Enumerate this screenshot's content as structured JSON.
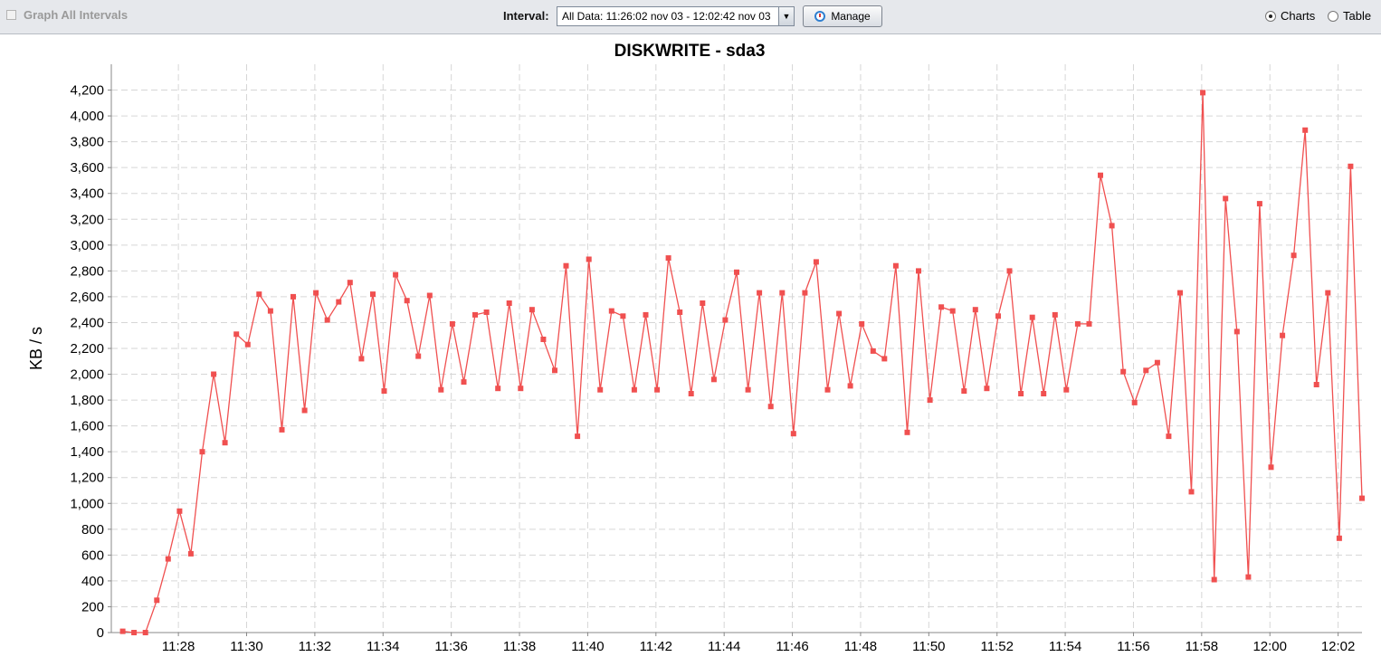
{
  "toolbar": {
    "graph_all_label": "Graph All Intervals",
    "interval_label": "Interval:",
    "interval_value": "All Data: 11:26:02 nov 03 - 12:02:42 nov 03",
    "manage_label": "Manage",
    "charts_label": "Charts",
    "table_label": "Table",
    "view_mode": "Charts"
  },
  "chart_data": {
    "type": "line",
    "title": "DISKWRITE - sda3",
    "ylabel": "KB / s",
    "xlabel": "",
    "ylim": [
      0,
      4400
    ],
    "y_ticks": [
      0,
      200,
      400,
      600,
      800,
      1000,
      1200,
      1400,
      1600,
      1800,
      2000,
      2200,
      2400,
      2600,
      2800,
      3000,
      3200,
      3400,
      3600,
      3800,
      4000,
      4200
    ],
    "x_ticks": [
      "11:28",
      "11:30",
      "11:32",
      "11:34",
      "11:36",
      "11:38",
      "11:40",
      "11:42",
      "11:44",
      "11:46",
      "11:48",
      "11:50",
      "11:52",
      "11:54",
      "11:56",
      "11:58",
      "12:00",
      "12:02"
    ],
    "xlim": [
      "11:26:02",
      "12:02:42"
    ],
    "grid": true,
    "line_color": "#f05050",
    "x": [
      "11:26:22",
      "11:26:42",
      "11:27:02",
      "11:27:22",
      "11:27:42",
      "11:28:02",
      "11:28:22",
      "11:28:42",
      "11:29:02",
      "11:29:22",
      "11:29:42",
      "11:30:02",
      "11:30:22",
      "11:30:42",
      "11:31:02",
      "11:31:22",
      "11:31:42",
      "11:32:02",
      "11:32:22",
      "11:32:42",
      "11:33:02",
      "11:33:22",
      "11:33:42",
      "11:34:02",
      "11:34:22",
      "11:34:42",
      "11:35:02",
      "11:35:22",
      "11:35:42",
      "11:36:02",
      "11:36:22",
      "11:36:42",
      "11:37:02",
      "11:37:22",
      "11:37:42",
      "11:38:02",
      "11:38:22",
      "11:38:42",
      "11:39:02",
      "11:39:22",
      "11:39:42",
      "11:40:02",
      "11:40:22",
      "11:40:42",
      "11:41:02",
      "11:41:22",
      "11:41:42",
      "11:42:02",
      "11:42:22",
      "11:42:42",
      "11:43:02",
      "11:43:22",
      "11:43:42",
      "11:44:02",
      "11:44:22",
      "11:44:42",
      "11:45:02",
      "11:45:22",
      "11:45:42",
      "11:46:02",
      "11:46:22",
      "11:46:42",
      "11:47:02",
      "11:47:22",
      "11:47:42",
      "11:48:02",
      "11:48:22",
      "11:48:42",
      "11:49:02",
      "11:49:22",
      "11:49:42",
      "11:50:02",
      "11:50:22",
      "11:50:42",
      "11:51:02",
      "11:51:22",
      "11:51:42",
      "11:52:02",
      "11:52:22",
      "11:52:42",
      "11:53:02",
      "11:53:22",
      "11:53:42",
      "11:54:02",
      "11:54:22",
      "11:54:42",
      "11:55:02",
      "11:55:22",
      "11:55:42",
      "11:56:02",
      "11:56:22",
      "11:56:42",
      "11:57:02",
      "11:57:22",
      "11:57:42",
      "11:58:02",
      "11:58:22",
      "11:58:42",
      "11:59:02",
      "11:59:22",
      "11:59:42",
      "12:00:02",
      "12:00:22",
      "12:00:42",
      "12:01:02",
      "12:01:22",
      "12:01:42",
      "12:02:02",
      "12:02:22",
      "12:02:42"
    ],
    "series": [
      {
        "values": [
          10,
          0,
          0,
          250,
          570,
          940,
          610,
          1400,
          2000,
          1470,
          2310,
          2230,
          2620,
          2490,
          1570,
          2600,
          1720,
          2630,
          2420,
          2560,
          2710,
          2120,
          2620,
          1870,
          2770,
          2570,
          2140,
          2610,
          1880,
          2390,
          1940,
          2460,
          2480,
          1890,
          2550,
          1890,
          2500,
          2270,
          2030,
          2840,
          1520,
          2890,
          1880,
          2490,
          2450,
          1880,
          2460,
          1880,
          2900,
          2480,
          1850,
          2550,
          1960,
          2420,
          2790,
          1880,
          2630,
          1750,
          2630,
          1540,
          2630,
          2870,
          1880,
          2470,
          1910,
          2390,
          2180,
          2120,
          2840,
          1550,
          2800,
          1800,
          2520,
          2490,
          1870,
          2500,
          1890,
          2450,
          2800,
          1850,
          2440,
          1850,
          2460,
          1880,
          2390,
          2390,
          3540,
          3150,
          2020,
          1780,
          2030,
          2090,
          1520,
          2630,
          1090,
          4180,
          410,
          3360,
          2330,
          430,
          3320,
          1280,
          2300,
          2920,
          3890,
          1920,
          2630,
          730,
          3610,
          1040
        ]
      }
    ]
  }
}
